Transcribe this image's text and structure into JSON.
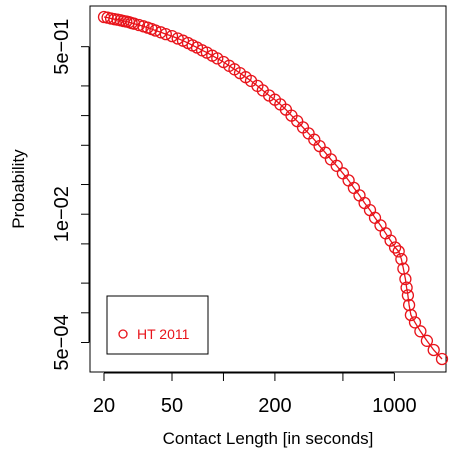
{
  "chart_data": {
    "type": "scatter",
    "title": "",
    "xlabel": "Contact Length [in seconds]",
    "ylabel": "Probability",
    "x_scale": "log",
    "y_scale": "log",
    "xlim": [
      20,
      2000
    ],
    "ylim": [
      0.0003,
      1.0
    ],
    "x_ticks": [
      20,
      50,
      100,
      200,
      500,
      1000,
      2000
    ],
    "x_tick_labels": [
      "20",
      "50",
      "",
      "200",
      "",
      "1000",
      ""
    ],
    "y_ticks": [
      0.0005,
      0.001,
      0.002,
      0.005,
      0.01,
      0.02,
      0.05,
      0.1,
      0.2,
      0.5
    ],
    "y_tick_labels": [
      "5e−04",
      "",
      "",
      "",
      "1e−02",
      "",
      "",
      "",
      "",
      "5e−01"
    ],
    "grid": false,
    "legend_position": "bottom-left",
    "colors": {
      "series": "#e8141b",
      "axis": "#000000"
    },
    "series": [
      {
        "name": "HT 2011",
        "points": [
          [
            20,
            1.0
          ],
          [
            21,
            0.985
          ],
          [
            22,
            0.965
          ],
          [
            23,
            0.95
          ],
          [
            24,
            0.94
          ],
          [
            25,
            0.925
          ],
          [
            26,
            0.91
          ],
          [
            27,
            0.9
          ],
          [
            28,
            0.885
          ],
          [
            29,
            0.87
          ],
          [
            30,
            0.855
          ],
          [
            32,
            0.83
          ],
          [
            34,
            0.805
          ],
          [
            36,
            0.78
          ],
          [
            38,
            0.755
          ],
          [
            40,
            0.73
          ],
          [
            43,
            0.7
          ],
          [
            46,
            0.67
          ],
          [
            50,
            0.64
          ],
          [
            54,
            0.605
          ],
          [
            58,
            0.575
          ],
          [
            62,
            0.545
          ],
          [
            66,
            0.515
          ],
          [
            70,
            0.49
          ],
          [
            75,
            0.46
          ],
          [
            80,
            0.435
          ],
          [
            86,
            0.405
          ],
          [
            92,
            0.38
          ],
          [
            100,
            0.35
          ],
          [
            108,
            0.32
          ],
          [
            116,
            0.295
          ],
          [
            125,
            0.27
          ],
          [
            135,
            0.245
          ],
          [
            145,
            0.225
          ],
          [
            158,
            0.2
          ],
          [
            170,
            0.18
          ],
          [
            185,
            0.16
          ],
          [
            200,
            0.145
          ],
          [
            215,
            0.13
          ],
          [
            232,
            0.115
          ],
          [
            250,
            0.1
          ],
          [
            270,
            0.088
          ],
          [
            292,
            0.076
          ],
          [
            315,
            0.066
          ],
          [
            340,
            0.057
          ],
          [
            365,
            0.049
          ],
          [
            395,
            0.042
          ],
          [
            425,
            0.036
          ],
          [
            460,
            0.031
          ],
          [
            500,
            0.026
          ],
          [
            540,
            0.022
          ],
          [
            580,
            0.0185
          ],
          [
            625,
            0.0155
          ],
          [
            670,
            0.013
          ],
          [
            720,
            0.011
          ],
          [
            770,
            0.0092
          ],
          [
            830,
            0.0077
          ],
          [
            890,
            0.0064
          ],
          [
            950,
            0.0054
          ],
          [
            1010,
            0.0046
          ],
          [
            1060,
            0.0042
          ],
          [
            1100,
            0.0035
          ],
          [
            1130,
            0.0028
          ],
          [
            1160,
            0.0022
          ],
          [
            1180,
            0.0018
          ],
          [
            1200,
            0.0015
          ],
          [
            1220,
            0.0012
          ],
          [
            1250,
            0.00095
          ],
          [
            1320,
            0.0008
          ],
          [
            1420,
            0.00065
          ],
          [
            1550,
            0.00052
          ],
          [
            1700,
            0.00042
          ],
          [
            1900,
            0.00034
          ]
        ]
      }
    ]
  }
}
